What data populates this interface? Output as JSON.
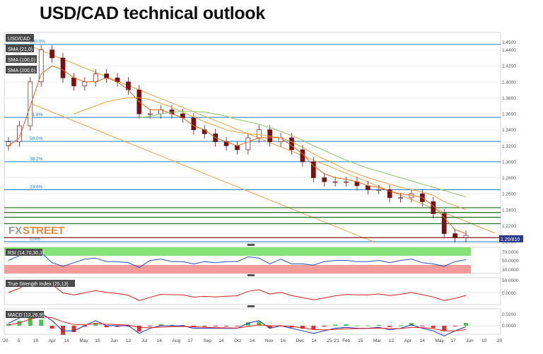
{
  "page": {
    "title": "USD/CAD technical outlook"
  },
  "chart_data": {
    "type": "candlestick",
    "symbol": "USD/CAD",
    "indicators": [
      "SMA (21,0)",
      "SMA (100,0)",
      "SMA (200,0)"
    ],
    "price_axis": {
      "range": [
        1.2,
        1.46
      ],
      "ticks": [
        "1.4500",
        "1.4400",
        "1.4200",
        "1.4000",
        "1.3800",
        "1.3600",
        "1.3400",
        "1.3200",
        "1.3000",
        "1.2800",
        "1.2600",
        "1.2400",
        "1.2200",
        "1.2000"
      ]
    },
    "last_price": "1.20/810",
    "fib_levels": [
      {
        "label": "100.0%",
        "price": 1.447
      },
      {
        "label": "61.8%",
        "price": 1.3555
      },
      {
        "label": "50.0%",
        "price": 1.3255
      },
      {
        "label": "38.2%",
        "price": 1.3
      },
      {
        "label": "23.6%",
        "price": 1.265
      },
      {
        "label": "0.0%",
        "price": 1.2
      }
    ],
    "support_levels": [
      1.2425,
      1.2365,
      1.2305,
      1.2225,
      1.205
    ],
    "time_axis": [
      "'20",
      "5",
      "18",
      "Apr",
      "14",
      "May",
      "15",
      "Jun",
      "12",
      "Jul",
      "14",
      "Aug",
      "17",
      "Sep",
      "14",
      "Oct",
      "14",
      "Nov",
      "16",
      "Dec",
      "14",
      "25 '21",
      "Feb",
      "15",
      "Mar",
      "12",
      "Apr",
      "14",
      "May",
      "17",
      "Jun",
      "10",
      "20"
    ],
    "watermark": {
      "fx": "FX",
      "street": "STREET"
    },
    "series": [
      {
        "name": "USD/CAD",
        "close": [
          1.325,
          1.345,
          1.4,
          1.44,
          1.43,
          1.405,
          1.395,
          1.4,
          1.41,
          1.405,
          1.4,
          1.39,
          1.36,
          1.36,
          1.365,
          1.36,
          1.355,
          1.34,
          1.335,
          1.325,
          1.32,
          1.315,
          1.33,
          1.34,
          1.325,
          1.33,
          1.315,
          1.3,
          1.28,
          1.275,
          1.275,
          1.275,
          1.27,
          1.265,
          1.265,
          1.255,
          1.255,
          1.26,
          1.25,
          1.235,
          1.21,
          1.205,
          1.208
        ]
      },
      {
        "name": "SMA (21,0)",
        "close": [
          1.32,
          1.33,
          1.37,
          1.41,
          1.42,
          1.415,
          1.405,
          1.4,
          1.4,
          1.405,
          1.4,
          1.39,
          1.375,
          1.365,
          1.365,
          1.36,
          1.355,
          1.345,
          1.34,
          1.33,
          1.325,
          1.32,
          1.325,
          1.33,
          1.33,
          1.33,
          1.32,
          1.31,
          1.295,
          1.285,
          1.28,
          1.278,
          1.275,
          1.27,
          1.268,
          1.263,
          1.26,
          1.258,
          1.255,
          1.245,
          1.23,
          1.215,
          1.21
        ]
      },
      {
        "name": "SMA (100,0)",
        "close": [
          null,
          null,
          null,
          null,
          null,
          null,
          1.36,
          1.365,
          1.37,
          1.375,
          1.378,
          1.38,
          1.38,
          1.378,
          1.373,
          1.368,
          1.362,
          1.356,
          1.35,
          1.345,
          1.34,
          1.337,
          1.335,
          1.334,
          1.332,
          1.33,
          1.325,
          1.318,
          1.31,
          1.303,
          1.297,
          1.29,
          1.285,
          1.28,
          1.276,
          1.272,
          1.268,
          1.265,
          1.262,
          1.258,
          1.25,
          1.245,
          1.24
        ]
      },
      {
        "name": "SMA (200,0)",
        "close": [
          null,
          null,
          null,
          null,
          null,
          null,
          null,
          null,
          null,
          null,
          null,
          null,
          1.355,
          1.357,
          1.36,
          1.362,
          1.363,
          1.363,
          1.362,
          1.36,
          1.357,
          1.353,
          1.35,
          1.347,
          1.343,
          1.338,
          1.333,
          1.327,
          1.32,
          1.314,
          1.308,
          1.302,
          1.297,
          1.292,
          1.288,
          1.284,
          1.28,
          1.276,
          1.272,
          1.268,
          1.264,
          1.26,
          1.256
        ]
      }
    ],
    "subpanels": [
      {
        "name": "RSI (14,70,30,1)",
        "ticks": [
          "70.0000",
          "50.0000",
          "30.0000"
        ],
        "overbought": 70,
        "oversold": 30
      },
      {
        "name": "True Strength Index (25,13)",
        "ticks": [
          "50.0000",
          "0.0000"
        ]
      },
      {
        "name": "MACD (12,26,9)",
        "ticks": [
          "0.0200",
          "0.0000"
        ]
      }
    ],
    "colors": {
      "price_up": "#ffffff",
      "price_down": "#7a1010",
      "sma21": "#e1671a",
      "sma100": "#e6a23c",
      "sma200": "#8fc26a",
      "fib": "#1b7fc4",
      "support": "#1f6b1f",
      "rsi": "#2a4fb5",
      "tsi": "#d02020",
      "macd": "#1c2fb0",
      "signal": "#e0201f"
    },
    "grid": true
  }
}
